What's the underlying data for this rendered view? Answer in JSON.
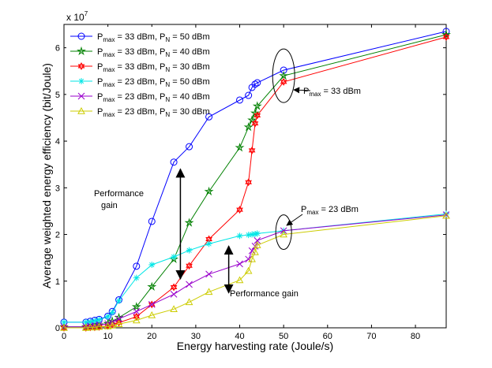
{
  "chart_data": {
    "type": "line",
    "title": "",
    "xlabel": "Energy harvesting rate (Joule/s)",
    "ylabel": "Average weighted energy efficiency (bit/Joule)",
    "xlim": [
      0,
      87
    ],
    "ylim": [
      0,
      6.5
    ],
    "y_scale_label": "x 10",
    "y_scale_exponent": "7",
    "x_ticks": [
      "0",
      "10",
      "20",
      "30",
      "40",
      "50",
      "60",
      "70",
      "80"
    ],
    "x_tick_values": [
      0,
      10,
      20,
      30,
      40,
      50,
      60,
      70,
      80
    ],
    "y_ticks": [
      "0",
      "1",
      "2",
      "3",
      "4",
      "5",
      "6"
    ],
    "y_tick_values": [
      0,
      1,
      2,
      3,
      4,
      5,
      6
    ],
    "grid": false,
    "legend_position": "top-left",
    "x": [
      0,
      5,
      6,
      7,
      8,
      10,
      11,
      12.5,
      16.5,
      20,
      25,
      28.5,
      33,
      40,
      42,
      42.8,
      43.5,
      44,
      50,
      87
    ],
    "series": [
      {
        "name": "P_max = 33 dBm, P_N = 50 dBm",
        "color": "#0000ff",
        "marker": "circle",
        "values": [
          0.12,
          0.12,
          0.14,
          0.16,
          0.18,
          0.25,
          0.35,
          0.6,
          1.32,
          2.28,
          3.55,
          3.88,
          4.52,
          4.88,
          4.98,
          5.15,
          5.22,
          5.25,
          5.52,
          6.35
        ]
      },
      {
        "name": "P_max = 33 dBm, P_N = 40 dBm",
        "color": "#008000",
        "marker": "star",
        "values": [
          0.02,
          0.02,
          0.03,
          0.04,
          0.06,
          0.09,
          0.14,
          0.22,
          0.45,
          0.88,
          1.47,
          2.25,
          2.92,
          3.86,
          4.3,
          4.45,
          4.6,
          4.75,
          5.4,
          6.28
        ]
      },
      {
        "name": "P_max = 33 dBm, P_N = 30 dBm",
        "color": "#ff0000",
        "marker": "hexagram",
        "values": [
          0.0,
          0.0,
          0.01,
          0.01,
          0.02,
          0.04,
          0.07,
          0.11,
          0.24,
          0.5,
          0.87,
          1.33,
          1.9,
          2.53,
          3.12,
          3.8,
          4.38,
          4.55,
          5.27,
          6.23
        ]
      },
      {
        "name": "P_max = 23 dBm, P_N = 50 dBm",
        "color": "#00e6e6",
        "marker": "asterisk",
        "values": [
          0.12,
          0.12,
          0.13,
          0.15,
          0.17,
          0.24,
          0.33,
          0.58,
          1.07,
          1.35,
          1.52,
          1.66,
          1.8,
          1.97,
          1.99,
          2.0,
          2.01,
          2.02,
          2.08,
          2.44
        ]
      },
      {
        "name": "P_max = 23 dBm, P_N = 40 dBm",
        "color": "#9900cc",
        "marker": "x",
        "values": [
          0.02,
          0.02,
          0.03,
          0.04,
          0.06,
          0.09,
          0.12,
          0.19,
          0.35,
          0.5,
          0.72,
          0.93,
          1.15,
          1.37,
          1.47,
          1.65,
          1.75,
          1.87,
          2.08,
          2.42
        ]
      },
      {
        "name": "P_max = 23 dBm, P_N = 30 dBm",
        "color": "#cccc00",
        "marker": "triangle",
        "values": [
          0.0,
          0.0,
          0.01,
          0.01,
          0.02,
          0.03,
          0.05,
          0.08,
          0.16,
          0.27,
          0.4,
          0.55,
          0.77,
          1.02,
          1.22,
          1.47,
          1.62,
          1.77,
          2.0,
          2.4
        ]
      }
    ],
    "legend": [
      {
        "pmax": "33",
        "pn": "50"
      },
      {
        "pmax": "33",
        "pn": "40"
      },
      {
        "pmax": "33",
        "pn": "30"
      },
      {
        "pmax": "23",
        "pn": "50"
      },
      {
        "pmax": "23",
        "pn": "40"
      },
      {
        "pmax": "23",
        "pn": "30"
      }
    ],
    "annotations": {
      "pmax33": {
        "value": "33",
        "unit": "dBm",
        "ellipse_center": [
          50,
          5.4
        ]
      },
      "pmax23": {
        "value": "23",
        "unit": "dBm",
        "ellipse_center": [
          50,
          2.05
        ]
      },
      "perf_gain_1": {
        "line1": "Performance",
        "line2": "gain",
        "arrow_x": 26.5,
        "arrow_y": [
          3.4,
          1.05
        ]
      },
      "perf_gain_2": {
        "text": "Performance gain",
        "arrow_x": 37.5,
        "arrow_y": [
          1.75,
          0.75
        ]
      }
    }
  }
}
